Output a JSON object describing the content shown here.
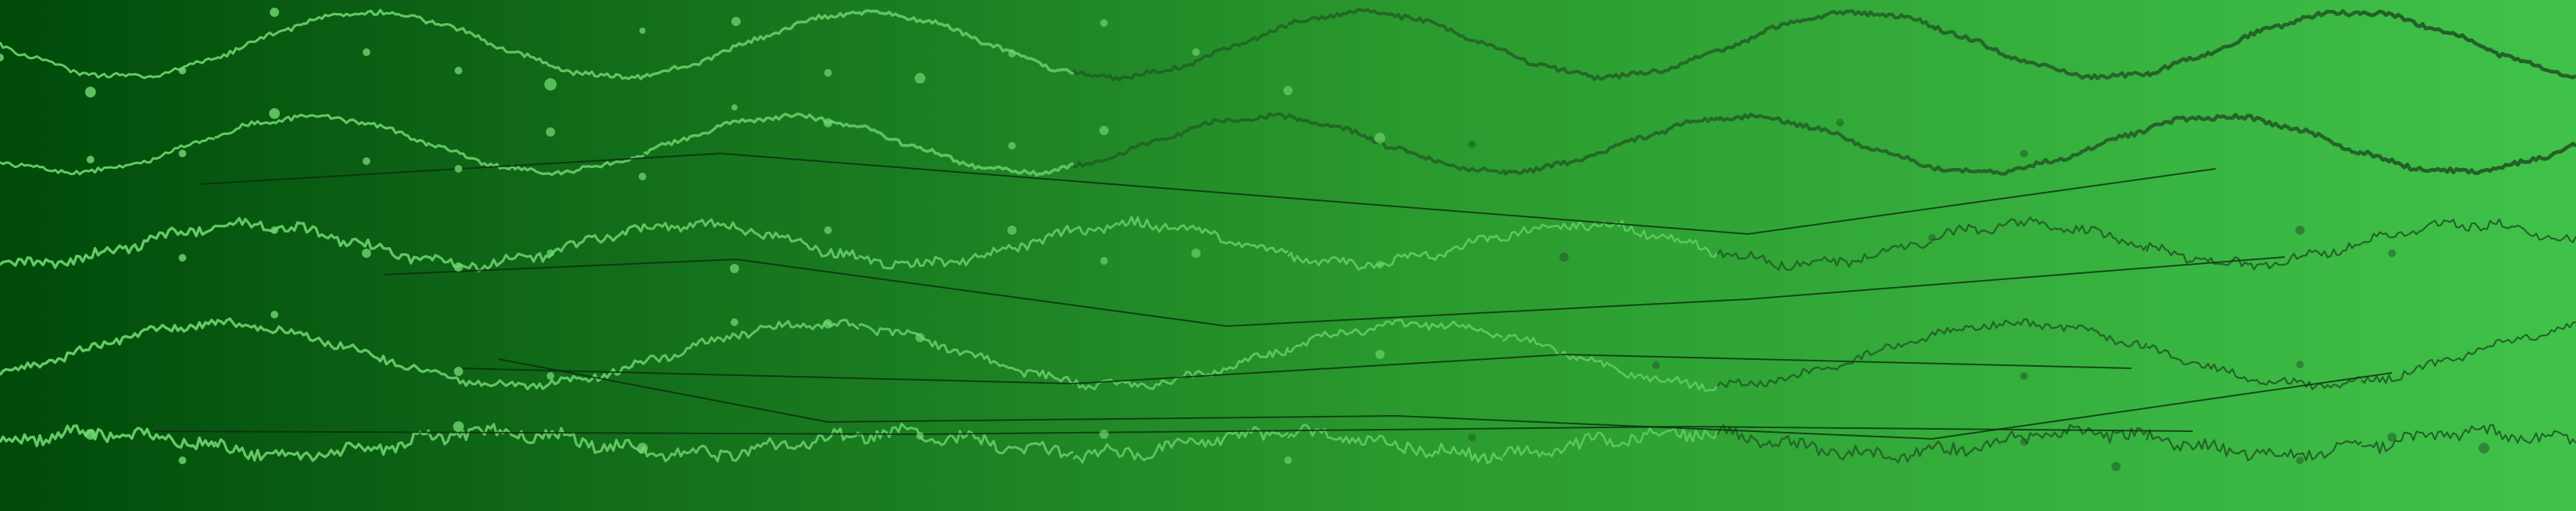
{
  "theme": {
    "gradient_start": "#004a0a",
    "gradient_mid": "#2a9a2e",
    "gradient_end": "#40c24a",
    "wave_dark": "#1f4a22",
    "wave_light": "#6fd86f",
    "line_dark": "#0d2a10",
    "dot_light": "#6fd86f",
    "dot_dark": "#245a27"
  },
  "wave_rows": [
    {
      "name": "wave-row-1",
      "amplitude": 42,
      "periods": 5.2,
      "noise": 3,
      "phase": 0.0
    },
    {
      "name": "wave-row-2",
      "amplitude": 36,
      "periods": 5.4,
      "noise": 3,
      "phase": 0.6
    },
    {
      "name": "wave-row-3",
      "amplitude": 26,
      "periods": 5.8,
      "noise": 6,
      "phase": 1.2
    },
    {
      "name": "wave-row-4",
      "amplitude": 40,
      "periods": 4.3,
      "noise": 5,
      "phase": 2.4
    },
    {
      "name": "wave-row-5",
      "amplitude": 14,
      "periods": 6.5,
      "noise": 8,
      "phase": 3.1
    }
  ]
}
